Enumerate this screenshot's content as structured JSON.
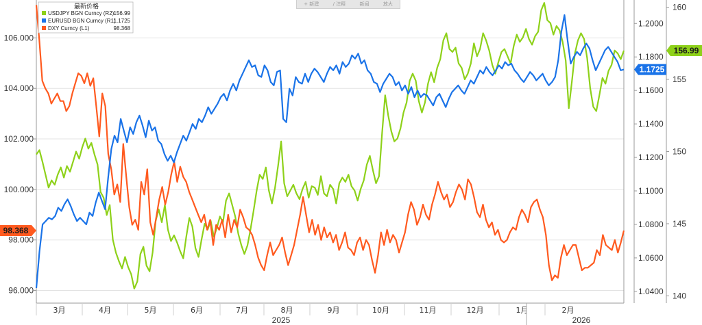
{
  "toolbar": {
    "items": [
      "+ 新建",
      "/ 注释",
      "新闻",
      "放大"
    ]
  },
  "legend": {
    "title": "最新价格",
    "items": [
      {
        "label": "USDJPY BGN Curncy  (R2)",
        "value": "156.99",
        "color": "#8ed11a"
      },
      {
        "label": "EURUSD BGN Curncy  (R1)",
        "value": "1.1725",
        "color": "#1a73e8"
      },
      {
        "label": "DXY Curncy   (L1)",
        "value": "98.368",
        "color": "#ff5a1f"
      }
    ]
  },
  "chart_data": {
    "type": "line",
    "x_labels": [
      "3月",
      "4月",
      "5月",
      "6月",
      "7月",
      "8月",
      "9月",
      "10月",
      "11月",
      "12月",
      "1月",
      "2月"
    ],
    "year_labels": [
      "2025",
      "2026"
    ],
    "axes": {
      "left": {
        "ticks": [
          "106.000",
          "104.000",
          "102.000",
          "100.000",
          "98.000",
          "96.000"
        ],
        "range": [
          95.5,
          107.5
        ]
      },
      "right1": {
        "ticks": [
          "1.2000",
          "1.1800",
          "1.1600",
          "1.1400",
          "1.1200",
          "1.1000",
          "1.0800",
          "1.0600",
          "1.0400"
        ],
        "range": [
          1.033,
          1.214
        ]
      },
      "right2": {
        "ticks": [
          "160",
          "155",
          "150",
          "145",
          "140"
        ],
        "range": [
          139.5,
          160.5
        ]
      }
    },
    "end_labels": {
      "left": "98.368",
      "right1": "1.1725",
      "right2": "156.99"
    },
    "series": [
      {
        "name": "DXY Curncy",
        "axis": "left",
        "color": "#ff5a1f",
        "values": [
          107.3,
          105.9,
          104.3,
          104.0,
          103.8,
          103.4,
          103.6,
          103.8,
          103.5,
          103.5,
          103.1,
          103.3,
          103.8,
          104.2,
          104.6,
          104.5,
          104.2,
          104.6,
          104.1,
          104.4,
          103.3,
          102.1,
          103.8,
          103.3,
          101.4,
          100.8,
          99.8,
          100.2,
          99.5,
          101.8,
          100.5,
          99.3,
          98.6,
          98.8,
          98.4,
          100.3,
          99.8,
          100.8,
          98.7,
          98.2,
          98.9,
          99.6,
          100.1,
          99.4,
          99.9,
          100.6,
          101.1,
          100.3,
          100.9,
          100.5,
          100.3,
          99.9,
          99.6,
          99.3,
          99.0,
          98.7,
          99.0,
          98.4,
          98.8,
          97.8,
          98.6,
          98.4,
          98.8,
          98.1,
          99.0,
          98.3,
          98.8,
          98.5,
          99.2,
          98.9,
          98.5,
          98.4,
          98.2,
          97.8,
          97.3,
          97.0,
          96.8,
          97.4,
          97.9,
          97.4,
          97.6,
          97.8,
          98.1,
          97.5,
          97.0,
          97.4,
          97.8,
          98.4,
          99.0,
          99.7,
          99.0,
          98.3,
          98.8,
          98.2,
          98.6,
          98.0,
          98.5,
          98.1,
          98.3,
          97.9,
          98.2,
          97.6,
          97.9,
          98.3,
          97.7,
          97.6,
          97.4,
          97.9,
          98.1,
          97.6,
          98.0,
          97.8,
          97.2,
          96.7,
          97.4,
          98.3,
          97.8,
          98.4,
          97.9,
          98.2,
          98.0,
          97.5,
          97.9,
          98.3,
          99.0,
          99.5,
          99.2,
          98.6,
          98.9,
          99.4,
          99.0,
          98.8,
          99.4,
          99.8,
          100.3,
          99.9,
          99.6,
          99.8,
          99.3,
          99.5,
          99.9,
          100.2,
          100.0,
          99.6,
          100.4,
          100.2,
          99.7,
          99.1,
          98.9,
          99.4,
          98.8,
          98.5,
          98.7,
          98.2,
          98.4,
          98.0,
          97.9,
          98.0,
          98.3,
          98.5,
          98.4,
          98.9,
          99.2,
          99.0,
          98.7,
          99.3,
          99.5,
          99.6,
          99.2,
          98.9,
          98.2,
          97.0,
          96.4,
          96.6,
          96.5,
          97.3,
          97.8,
          97.4,
          97.6,
          97.8,
          97.8,
          97.3,
          96.8,
          96.9,
          96.9,
          97.0,
          97.1,
          97.6,
          97.4,
          98.2,
          97.8,
          97.7,
          97.6,
          98.0,
          97.5,
          97.9,
          98.37
        ]
      },
      {
        "name": "EURUSD BGN Curncy",
        "axis": "right1",
        "color": "#1a73e8",
        "values": [
          1.042,
          1.064,
          1.08,
          1.082,
          1.084,
          1.083,
          1.085,
          1.09,
          1.088,
          1.092,
          1.095,
          1.091,
          1.086,
          1.082,
          1.084,
          1.082,
          1.08,
          1.087,
          1.085,
          1.093,
          1.099,
          1.094,
          1.089,
          1.108,
          1.125,
          1.133,
          1.129,
          1.143,
          1.136,
          1.129,
          1.138,
          1.134,
          1.141,
          1.145,
          1.139,
          1.132,
          1.142,
          1.136,
          1.138,
          1.13,
          1.128,
          1.122,
          1.118,
          1.121,
          1.117,
          1.123,
          1.128,
          1.133,
          1.13,
          1.135,
          1.14,
          1.137,
          1.143,
          1.141,
          1.145,
          1.15,
          1.146,
          1.149,
          1.152,
          1.156,
          1.158,
          1.154,
          1.16,
          1.164,
          1.16,
          1.166,
          1.17,
          1.174,
          1.178,
          1.174,
          1.175,
          1.169,
          1.168,
          1.175,
          1.172,
          1.165,
          1.163,
          1.171,
          1.172,
          1.143,
          1.141,
          1.161,
          1.157,
          1.168,
          1.165,
          1.164,
          1.17,
          1.165,
          1.17,
          1.173,
          1.171,
          1.168,
          1.165,
          1.17,
          1.174,
          1.172,
          1.175,
          1.17,
          1.177,
          1.174,
          1.176,
          1.181,
          1.179,
          1.182,
          1.176,
          1.178,
          1.172,
          1.17,
          1.165,
          1.164,
          1.159,
          1.164,
          1.167,
          1.17,
          1.168,
          1.163,
          1.165,
          1.16,
          1.163,
          1.158,
          1.162,
          1.156,
          1.16,
          1.156,
          1.158,
          1.157,
          1.154,
          1.151,
          1.156,
          1.158,
          1.154,
          1.15,
          1.155,
          1.159,
          1.161,
          1.163,
          1.16,
          1.158,
          1.162,
          1.166,
          1.164,
          1.168,
          1.172,
          1.17,
          1.174,
          1.171,
          1.169,
          1.172,
          1.175,
          1.173,
          1.177,
          1.175,
          1.176,
          1.172,
          1.17,
          1.167,
          1.165,
          1.168,
          1.171,
          1.169,
          1.166,
          1.168,
          1.17,
          1.166,
          1.163,
          1.165,
          1.168,
          1.178,
          1.195,
          1.205,
          1.19,
          1.176,
          1.18,
          1.183,
          1.181,
          1.185,
          1.188,
          1.185,
          1.178,
          1.172,
          1.176,
          1.18,
          1.184,
          1.186,
          1.183,
          1.18,
          1.177,
          1.172,
          1.1725
        ]
      },
      {
        "name": "USDJPY BGN Curncy",
        "axis": "right2",
        "color": "#8ed11a",
        "values": [
          149.8,
          150.1,
          149.3,
          148.4,
          147.5,
          148.0,
          147.7,
          148.4,
          148.9,
          148.2,
          149.0,
          148.6,
          149.3,
          150.0,
          149.5,
          150.3,
          150.9,
          150.2,
          150.6,
          149.8,
          149.1,
          147.2,
          146.8,
          145.6,
          146.3,
          143.9,
          143.0,
          142.4,
          141.9,
          142.7,
          142.0,
          141.5,
          140.5,
          141.0,
          142.9,
          143.4,
          142.1,
          141.7,
          143.0,
          145.2,
          146.0,
          145.1,
          146.3,
          144.6,
          143.8,
          144.2,
          143.7,
          143.1,
          142.6,
          144.1,
          145.4,
          144.8,
          143.3,
          142.7,
          143.9,
          145.0,
          144.6,
          145.2,
          144.1,
          144.7,
          145.5,
          145.1,
          146.6,
          147.1,
          146.3,
          145.5,
          144.3,
          143.5,
          142.9,
          143.5,
          144.6,
          145.9,
          147.3,
          148.4,
          148.1,
          148.9,
          147.3,
          146.4,
          147.5,
          149.0,
          150.7,
          147.8,
          146.9,
          147.3,
          147.7,
          147.1,
          146.7,
          147.4,
          147.9,
          146.8,
          147.6,
          147.5,
          147.0,
          148.3,
          147.1,
          146.9,
          147.7,
          147.4,
          146.4,
          147.8,
          148.2,
          147.9,
          148.4,
          147.6,
          147.3,
          146.6,
          147.4,
          148.0,
          149.1,
          149.7,
          148.7,
          147.8,
          148.3,
          151.3,
          153.9,
          152.5,
          151.4,
          150.7,
          150.9,
          151.6,
          152.7,
          153.4,
          154.9,
          155.4,
          154.9,
          153.5,
          152.7,
          153.4,
          154.7,
          155.5,
          154.8,
          155.8,
          156.4,
          157.7,
          158.2,
          157.1,
          156.9,
          157.2,
          156.1,
          155.8,
          155.0,
          155.4,
          156.1,
          157.5,
          156.6,
          157.1,
          158.2,
          157.7,
          157.0,
          156.0,
          155.4,
          156.2,
          156.9,
          157.1,
          156.6,
          156.1,
          157.3,
          158.1,
          157.6,
          157.9,
          158.5,
          157.8,
          157.4,
          158.0,
          158.3,
          159.8,
          160.3,
          159.1,
          158.9,
          158.1,
          158.7,
          158.4,
          157.6,
          156.3,
          153.0,
          154.8,
          156.8,
          157.7,
          158.2,
          157.8,
          156.5,
          154.4,
          153.1,
          152.8,
          153.9,
          155.1,
          154.7,
          155.6,
          156.0,
          157.0,
          156.8,
          156.4,
          156.99
        ]
      }
    ]
  }
}
